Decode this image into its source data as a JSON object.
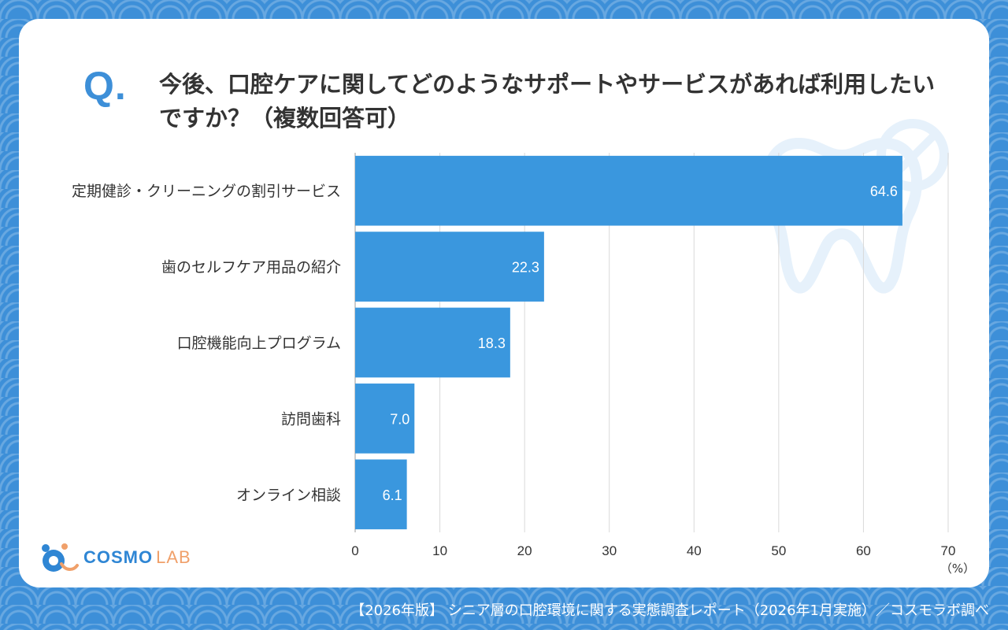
{
  "header": {
    "q_mark": "Q.",
    "question": "今後、口腔ケアに関してどのようなサポートやサービスがあれば利用したいですか？（複数回答可）"
  },
  "chart_data": {
    "type": "bar",
    "orientation": "horizontal",
    "categories": [
      "定期健診・クリーニングの割引サービス",
      "歯のセルフケア用品の紹介",
      "口腔機能向上プログラム",
      "訪問歯科",
      "オンライン相談"
    ],
    "values": [
      64.6,
      22.3,
      18.3,
      7.0,
      6.1
    ],
    "value_labels": [
      "64.6",
      "22.3",
      "18.3",
      "7.0",
      "6.1"
    ],
    "xlim": [
      0,
      70
    ],
    "ticks": [
      0,
      10,
      20,
      30,
      40,
      50,
      60,
      70
    ],
    "unit_label": "（%）",
    "grid": true,
    "bar_color": "#3a97de",
    "grid_color": "#d9d9d9"
  },
  "logo": {
    "text_main": "COSMO",
    "text_sub": "LAB",
    "colors": {
      "primary": "#2f86d4",
      "accent": "#f0a06a"
    }
  },
  "footer": {
    "source": "【2026年版】 シニア層の口腔環境に関する実態調査レポート（2026年1月実施）／コスモラボ調べ"
  }
}
